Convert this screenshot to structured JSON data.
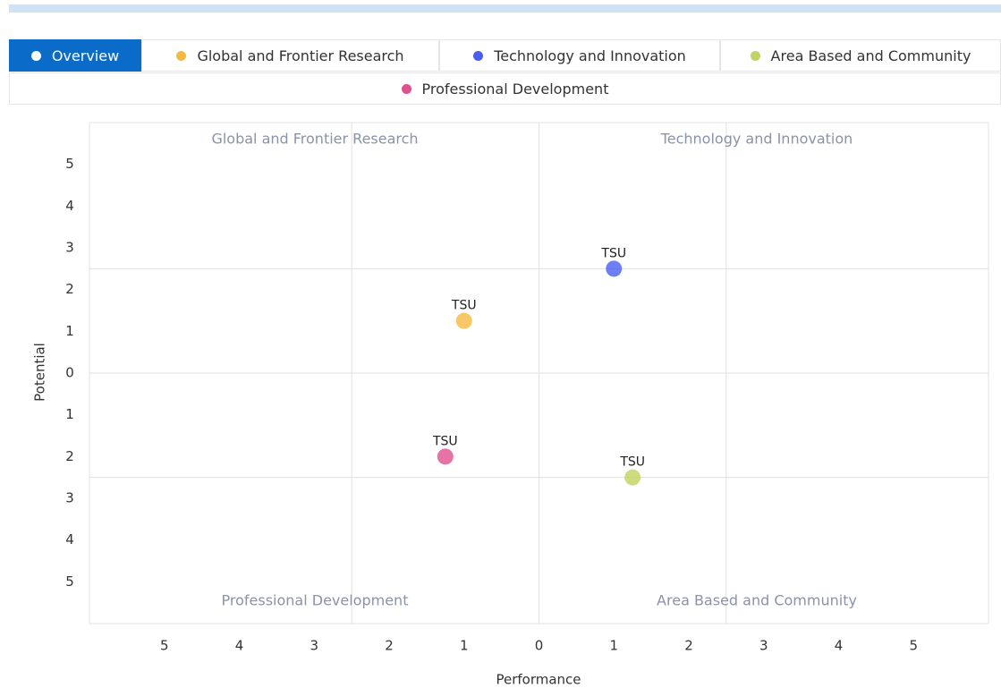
{
  "overview_tab": "Overview",
  "chart_data": {
    "type": "scatter",
    "xlabel": "Performance",
    "ylabel": "Potential",
    "annotations": [
      "Global and Frontier Research",
      "Technology and Innovation",
      "Professional Development",
      "Area Based and Community"
    ],
    "series": [
      {
        "name": "Global and Frontier Research",
        "color": "#f5b942",
        "x": [
          -1
        ],
        "values": [
          1.25
        ],
        "labels": [
          "TSU"
        ]
      },
      {
        "name": "Technology and Innovation",
        "color": "#4a5ef0",
        "x": [
          1
        ],
        "values": [
          2.5
        ],
        "labels": [
          "TSU"
        ]
      },
      {
        "name": "Area Based and Community",
        "color": "#c2d35e",
        "x": [
          1.25
        ],
        "values": [
          -2.5
        ],
        "labels": [
          "TSU"
        ]
      },
      {
        "name": "Professional Development",
        "color": "#e0508f",
        "x": [
          -1.25
        ],
        "values": [
          -2
        ],
        "labels": [
          "TSU"
        ]
      }
    ],
    "xlim": [
      -6,
      6
    ],
    "ylim": [
      -6,
      6
    ],
    "xticks": [
      {
        "value": -5,
        "label": "5"
      },
      {
        "value": -4,
        "label": "4"
      },
      {
        "value": -3,
        "label": "3"
      },
      {
        "value": -2,
        "label": "2"
      },
      {
        "value": -1,
        "label": "1"
      },
      0,
      1,
      2,
      3,
      4,
      5
    ],
    "yticks": [
      {
        "value": -5,
        "label": "5"
      },
      {
        "value": -4,
        "label": "4"
      },
      {
        "value": -3,
        "label": "3"
      },
      {
        "value": -2,
        "label": "2"
      },
      {
        "value": -1,
        "label": "1"
      },
      0,
      1,
      2,
      3,
      4,
      5
    ],
    "xgrid": [
      -2.5,
      0,
      2.5
    ],
    "ygrid": [
      -2.5,
      0,
      2.5
    ]
  }
}
